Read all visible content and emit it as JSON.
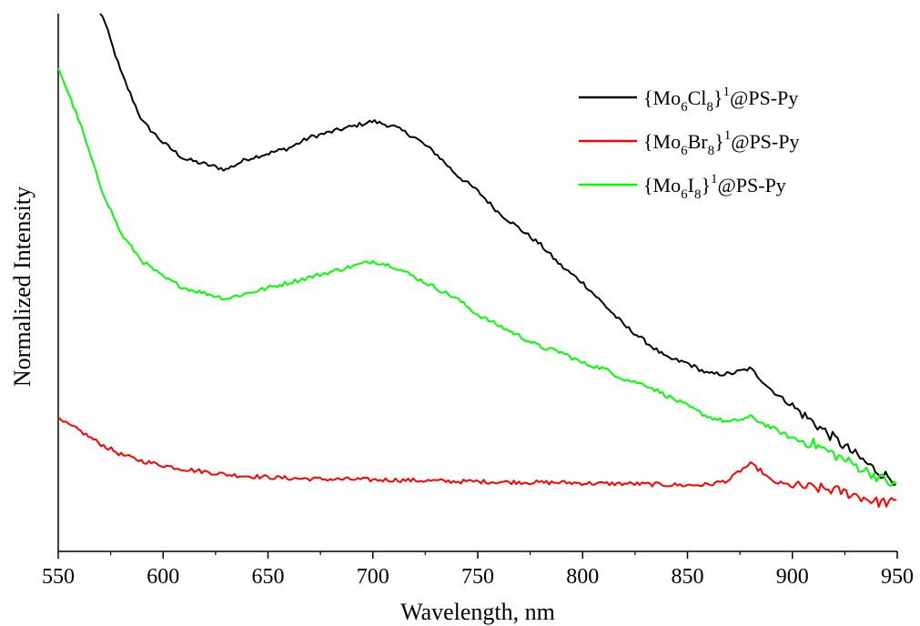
{
  "chart_data": {
    "type": "line",
    "title": "",
    "xlabel": "Wavelength, nm",
    "ylabel": "Normalized Intensity",
    "xlim": [
      550,
      950
    ],
    "ylim": [
      0,
      1
    ],
    "x_ticks": [
      "550",
      "600",
      "650",
      "700",
      "750",
      "800",
      "850",
      "900",
      "950"
    ],
    "y_ticks_shown": false,
    "grid": false,
    "legend_position": "top-right",
    "legend": [
      {
        "base": "{Mo",
        "sub1": "6",
        "mid": "Cl",
        "sub2": "8",
        "close": "}",
        "sup": "1",
        "tail": "@PS-Py"
      },
      {
        "base": "{Mo",
        "sub1": "6",
        "mid": "Br",
        "sub2": "8",
        "close": "}",
        "sup": "1",
        "tail": "@PS-Py"
      },
      {
        "base": "{Mo",
        "sub1": "6",
        "mid": "I",
        "sub2": "8",
        "close": "}",
        "sup": "1",
        "tail": "@PS-Py"
      }
    ],
    "series": [
      {
        "name": "{Mo6Cl8}1@PS-Py",
        "color": "#000000",
        "x": [
          570,
          580,
          590,
          600,
          610,
          620,
          630,
          640,
          650,
          660,
          670,
          680,
          690,
          700,
          710,
          720,
          730,
          740,
          750,
          760,
          770,
          780,
          790,
          800,
          810,
          820,
          830,
          840,
          850,
          860,
          870,
          880,
          890,
          900,
          910,
          920,
          930,
          940,
          950
        ],
        "values": [
          1.01,
          0.89,
          0.8,
          0.76,
          0.73,
          0.72,
          0.71,
          0.73,
          0.74,
          0.75,
          0.77,
          0.78,
          0.79,
          0.8,
          0.79,
          0.77,
          0.74,
          0.7,
          0.67,
          0.63,
          0.6,
          0.57,
          0.53,
          0.5,
          0.46,
          0.42,
          0.39,
          0.36,
          0.35,
          0.33,
          0.33,
          0.34,
          0.3,
          0.27,
          0.24,
          0.21,
          0.18,
          0.15,
          0.13
        ]
      },
      {
        "name": "{Mo6Br8}1@PS-Py",
        "color": "#ff0000",
        "x": [
          550,
          560,
          570,
          580,
          590,
          600,
          610,
          620,
          630,
          640,
          650,
          660,
          670,
          680,
          690,
          700,
          710,
          720,
          730,
          740,
          750,
          760,
          770,
          780,
          790,
          800,
          810,
          820,
          830,
          840,
          850,
          860,
          870,
          875,
          880,
          885,
          890,
          900,
          910,
          920,
          930,
          940,
          950
        ],
        "values": [
          0.245,
          0.225,
          0.2,
          0.18,
          0.168,
          0.16,
          0.153,
          0.148,
          0.143,
          0.14,
          0.138,
          0.136,
          0.135,
          0.134,
          0.134,
          0.133,
          0.133,
          0.132,
          0.131,
          0.13,
          0.13,
          0.129,
          0.129,
          0.128,
          0.128,
          0.127,
          0.126,
          0.126,
          0.125,
          0.124,
          0.123,
          0.124,
          0.133,
          0.15,
          0.162,
          0.15,
          0.13,
          0.122,
          0.118,
          0.114,
          0.105,
          0.092,
          0.09
        ]
      },
      {
        "name": "{Mo6I8}1@PS-Py",
        "color": "#00ff00",
        "x": [
          550,
          560,
          570,
          580,
          590,
          600,
          610,
          620,
          630,
          640,
          650,
          660,
          670,
          680,
          690,
          700,
          710,
          720,
          730,
          740,
          750,
          760,
          770,
          780,
          790,
          800,
          810,
          820,
          830,
          840,
          850,
          860,
          870,
          880,
          890,
          900,
          910,
          920,
          930,
          940,
          950
        ],
        "values": [
          0.9,
          0.8,
          0.68,
          0.59,
          0.54,
          0.51,
          0.49,
          0.48,
          0.47,
          0.48,
          0.49,
          0.5,
          0.51,
          0.52,
          0.53,
          0.54,
          0.53,
          0.51,
          0.49,
          0.47,
          0.44,
          0.42,
          0.4,
          0.38,
          0.37,
          0.35,
          0.34,
          0.32,
          0.31,
          0.29,
          0.27,
          0.25,
          0.24,
          0.25,
          0.23,
          0.21,
          0.2,
          0.18,
          0.16,
          0.14,
          0.12
        ]
      }
    ]
  }
}
